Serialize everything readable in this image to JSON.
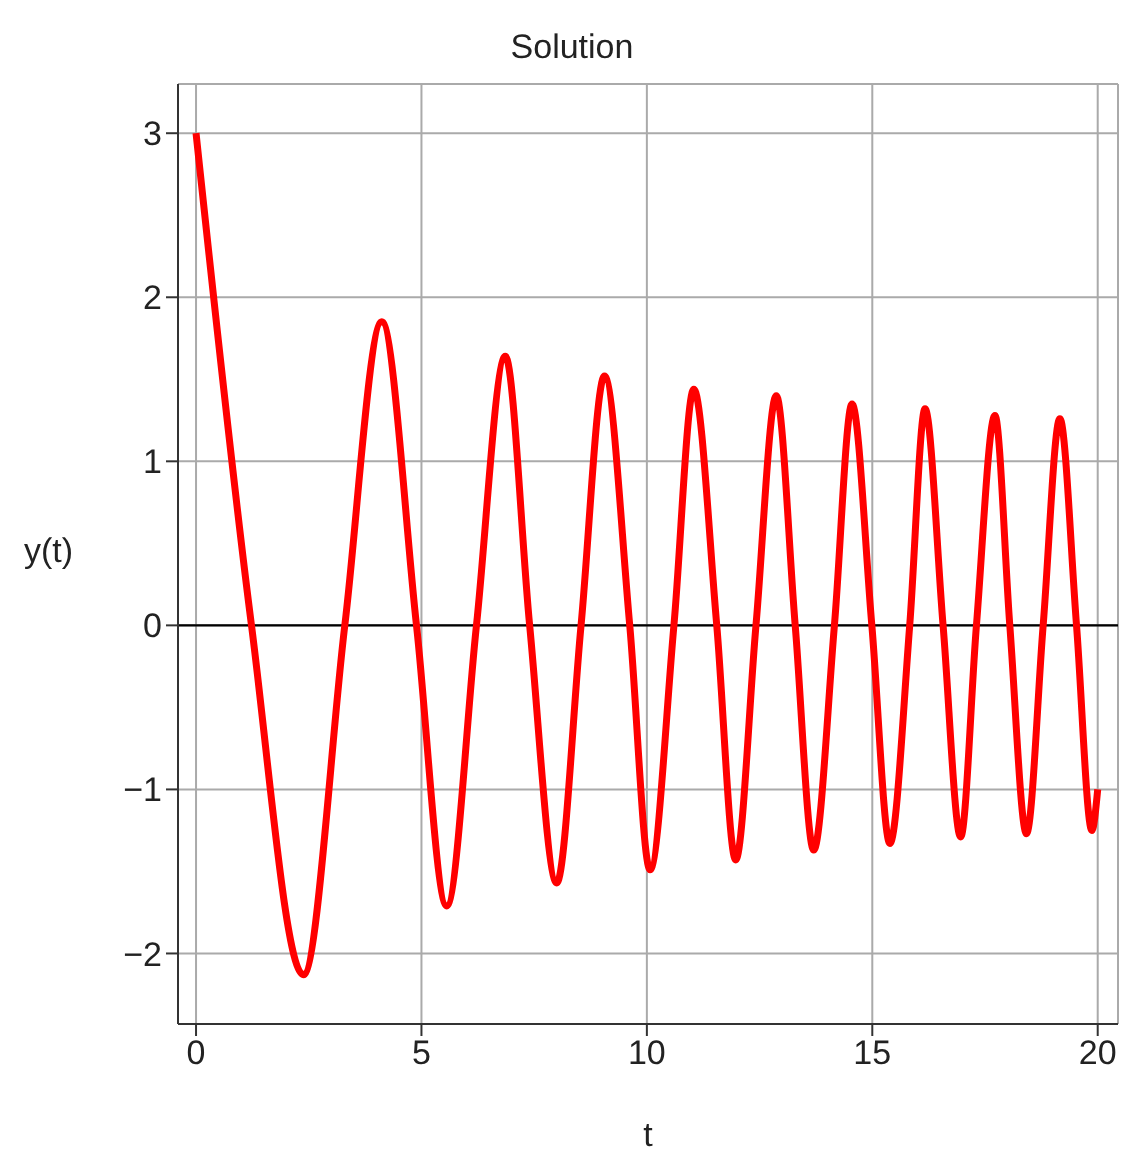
{
  "chart_data": {
    "type": "line",
    "title": "Solution",
    "xlabel": "t",
    "ylabel": "y(t)",
    "xlim": [
      -0.4,
      20.45
    ],
    "ylim": [
      -2.43,
      3.3
    ],
    "xticks": [
      0,
      5,
      10,
      15,
      20
    ],
    "yticks": [
      -2,
      -1,
      0,
      1,
      2,
      3
    ],
    "grid": true,
    "marker": "none",
    "line_style": "solid",
    "ref_lines": [
      {
        "axis": "y",
        "value": 0,
        "color": "#000000"
      }
    ],
    "series": [
      {
        "color": "#ff0000",
        "x": [
          0,
          1.23,
          2.38,
          3.3,
          4.12,
          4.89,
          5.56,
          6.22,
          6.86,
          7.4,
          8.0,
          8.54,
          9.06,
          9.62,
          10.07,
          10.6,
          11.04,
          11.55,
          11.97,
          12.42,
          12.87,
          13.29,
          13.7,
          14.16,
          14.55,
          14.99,
          15.39,
          15.83,
          16.17,
          16.57,
          16.96,
          17.31,
          17.72,
          18.05,
          18.42,
          18.79,
          19.16,
          19.53,
          19.87,
          20.0
        ],
        "values": [
          3,
          0,
          -2.13,
          0,
          1.85,
          0,
          -1.71,
          0,
          1.64,
          0,
          -1.57,
          0,
          1.52,
          0,
          -1.49,
          0,
          1.44,
          0,
          -1.43,
          0,
          1.4,
          0,
          -1.37,
          0,
          1.35,
          0,
          -1.33,
          0,
          1.32,
          0,
          -1.29,
          0,
          1.28,
          0,
          -1.27,
          0,
          1.26,
          0,
          -1.25,
          -1.0
        ]
      }
    ]
  }
}
